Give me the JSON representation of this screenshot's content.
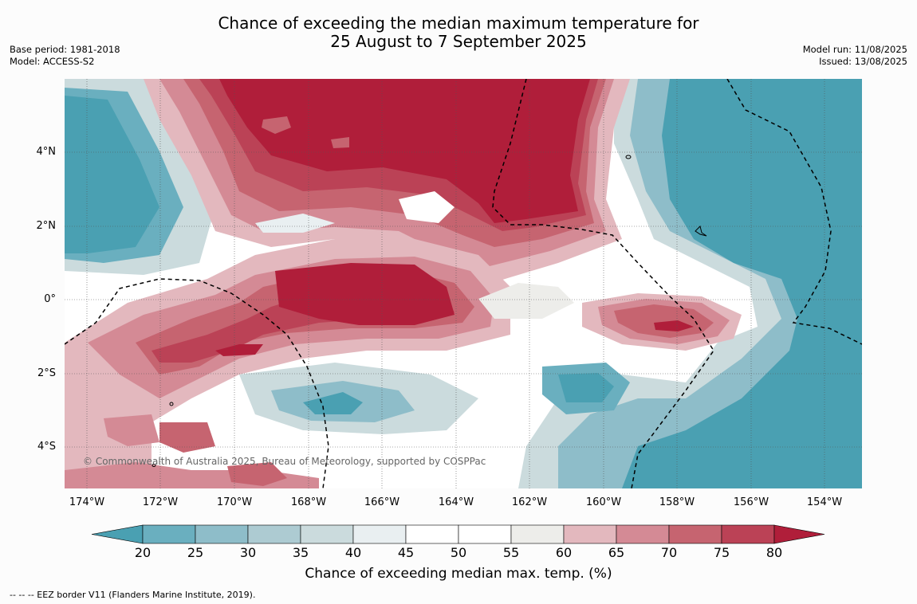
{
  "header": {
    "title_line1": "Chance of exceeding the median maximum temperature for",
    "title_line2": "25 August to 7 September 2025",
    "base_period": "Base period: 1981-2018",
    "model": "Model: ACCESS-S2",
    "model_run": "Model run: 11/08/2025",
    "issued": "Issued: 13/08/2025"
  },
  "map": {
    "copyright": "© Commonwealth of Australia 2025, Bureau of Meteorology, supported by COSPPac",
    "lat_labels": [
      "4°N",
      "2°N",
      "0°",
      "2°S",
      "4°S"
    ],
    "lon_labels": [
      "174°W",
      "172°W",
      "170°W",
      "168°W",
      "166°W",
      "164°W",
      "162°W",
      "160°W",
      "158°W",
      "156°W",
      "154°W"
    ]
  },
  "colorbar": {
    "ticks": [
      "20",
      "25",
      "30",
      "35",
      "40",
      "45",
      "50",
      "55",
      "60",
      "65",
      "70",
      "75",
      "80"
    ],
    "colors": {
      "below20": "#4aa0b2",
      "c20_25": "#6aafbf",
      "c25_30": "#8ebdc9",
      "c30_35": "#adcbd2",
      "c35_40": "#cbdbdd",
      "c40_45": "#e9eff1",
      "c45_50": "#ffffff",
      "c50_55": "#ffffff",
      "c55_60": "#ededea",
      "c60_65": "#e3b8be",
      "c65_70": "#d48a95",
      "c70_75": "#c66470",
      "c75_80": "#bb4256",
      "above80": "#b01e3a"
    },
    "label": "Chance of exceeding median max. temp. (%)"
  },
  "footnote": "--  --  -- EEZ border V11 (Flanders Marine Institute, 2019)."
}
